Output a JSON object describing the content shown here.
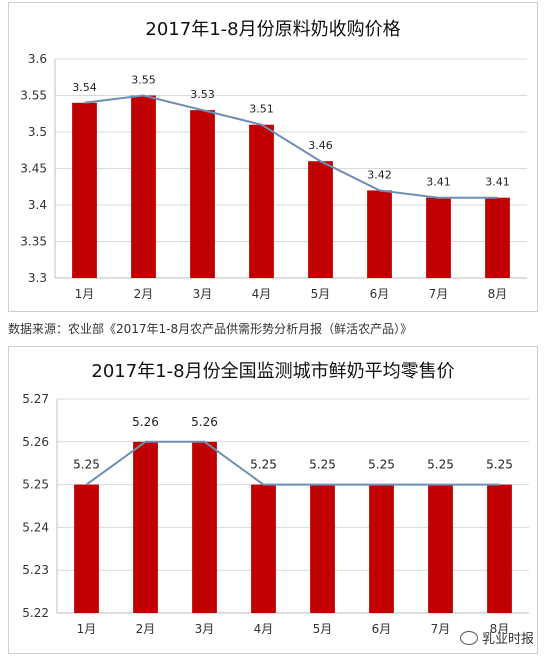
{
  "chart_data": [
    {
      "type": "bar",
      "title": "2017年1-8月份原料奶收购价格",
      "categories": [
        "1月",
        "2月",
        "3月",
        "4月",
        "5月",
        "6月",
        "7月",
        "8月"
      ],
      "values": [
        3.54,
        3.55,
        3.53,
        3.51,
        3.46,
        3.42,
        3.41,
        3.41
      ],
      "data_labels": [
        "3.54",
        "3.55",
        "3.53",
        "3.51",
        "3.46",
        "3.42",
        "3.41",
        "3.41"
      ],
      "overlay_line": true,
      "ylim": [
        3.3,
        3.6
      ],
      "yticks": [
        "3.3",
        "3.35",
        "3.4",
        "3.45",
        "3.5",
        "3.55",
        "3.6"
      ],
      "bar_color": "#c00000",
      "line_color": "#6e8fb3",
      "grid": true,
      "legend": "none"
    },
    {
      "type": "bar",
      "title": "2017年1-8月份全国监测城市鲜奶平均零售价",
      "categories": [
        "1月",
        "2月",
        "3月",
        "4月",
        "5月",
        "6月",
        "7月",
        "8月"
      ],
      "values": [
        5.25,
        5.26,
        5.26,
        5.25,
        5.25,
        5.25,
        5.25,
        5.25
      ],
      "data_labels": [
        "5.25",
        "5.26",
        "5.26",
        "5.25",
        "5.25",
        "5.25",
        "5.25",
        "5.25"
      ],
      "overlay_line": true,
      "ylim": [
        5.22,
        5.27
      ],
      "yticks": [
        "5.22",
        "5.23",
        "5.24",
        "5.25",
        "5.26",
        "5.27"
      ],
      "bar_color": "#c00000",
      "line_color": "#6e8fb3",
      "grid": true,
      "legend": "none"
    }
  ],
  "source_note": "数据来源：农业部《2017年1-8月农产品供需形势分析月报（鲜活农产品）》",
  "watermark": "乳业时报"
}
